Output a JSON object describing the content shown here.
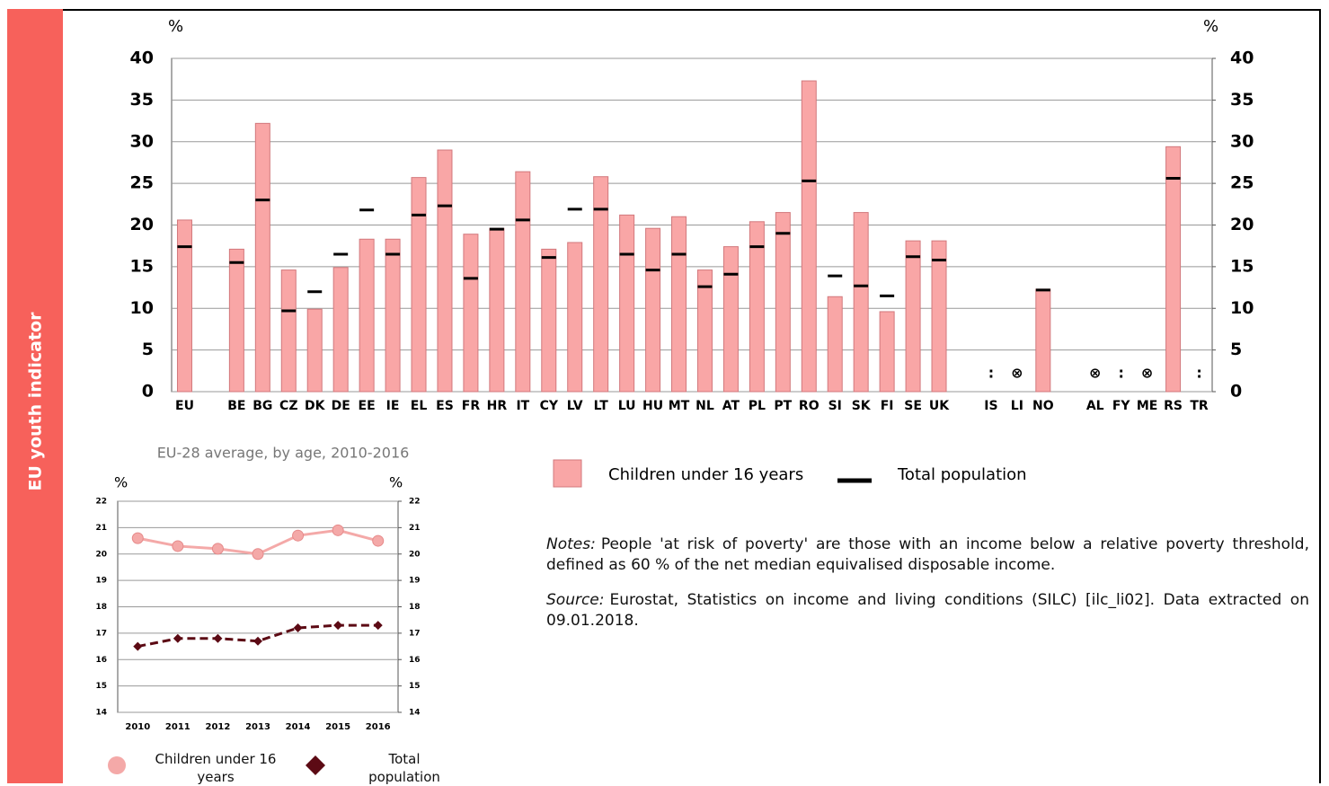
{
  "sidebar": "EU youth indicator",
  "chart_data": [
    {
      "type": "bar",
      "ylabel": "%",
      "y2label": "%",
      "categories": [
        "EU",
        null,
        "BE",
        "BG",
        "CZ",
        "DK",
        "DE",
        "EE",
        "IE",
        "EL",
        "ES",
        "FR",
        "HR",
        "IT",
        "CY",
        "LV",
        "LT",
        "LU",
        "HU",
        "MT",
        "NL",
        "AT",
        "PL",
        "PT",
        "RO",
        "SI",
        "SK",
        "FI",
        "SE",
        "UK",
        null,
        "IS",
        "LI",
        "NO",
        null,
        "AL",
        "FY",
        "ME",
        "RS",
        "TR"
      ],
      "series": [
        {
          "name": "Children under 16 years",
          "color": "#f9a6a6",
          "style": "bar",
          "values": [
            20.6,
            null,
            17.1,
            32.2,
            14.6,
            9.9,
            14.9,
            18.3,
            18.3,
            25.7,
            29.0,
            18.9,
            19.6,
            26.4,
            17.1,
            17.9,
            25.8,
            21.2,
            19.6,
            21.0,
            14.6,
            17.4,
            20.4,
            21.5,
            37.3,
            11.4,
            21.5,
            9.6,
            18.1,
            18.1,
            null,
            null,
            null,
            12.3,
            null,
            null,
            null,
            null,
            29.4,
            null
          ]
        },
        {
          "name": "Total population",
          "color": "#000000",
          "style": "dash",
          "values": [
            17.4,
            null,
            15.5,
            23.0,
            9.7,
            12.0,
            16.5,
            21.8,
            16.5,
            21.2,
            22.3,
            13.6,
            19.5,
            20.6,
            16.1,
            21.9,
            21.9,
            16.5,
            14.6,
            16.5,
            12.6,
            14.1,
            17.4,
            19.0,
            25.3,
            13.9,
            12.7,
            11.5,
            16.2,
            15.8,
            null,
            null,
            null,
            12.2,
            null,
            null,
            null,
            null,
            25.6,
            null
          ]
        }
      ],
      "missing_labels": [
        null,
        null,
        null,
        null,
        null,
        null,
        null,
        null,
        null,
        null,
        null,
        null,
        null,
        null,
        null,
        null,
        null,
        null,
        null,
        null,
        null,
        null,
        null,
        null,
        null,
        null,
        null,
        null,
        null,
        null,
        null,
        ":",
        "⊗",
        null,
        null,
        "⊗",
        ":",
        "⊗",
        null,
        ":"
      ],
      "ylim": [
        0,
        40
      ],
      "yticks": [
        0,
        5,
        10,
        15,
        20,
        25,
        30,
        35,
        40
      ],
      "y2lim": [
        0,
        40
      ],
      "y2ticks": [
        0,
        5,
        10,
        15,
        20,
        25,
        30,
        35,
        40
      ],
      "grid": true
    },
    {
      "type": "line",
      "title": "EU-28 average, by age, 2010-2016",
      "ylabel": "%",
      "y2label": "%",
      "categories": [
        "2010",
        "2011",
        "2012",
        "2013",
        "2014",
        "2015",
        "2016"
      ],
      "series": [
        {
          "name": "Children under 16 years",
          "color": "#f4a9a8",
          "marker": "circle",
          "dashed": false,
          "values": [
            20.6,
            20.3,
            20.2,
            20.0,
            20.7,
            20.9,
            20.5
          ]
        },
        {
          "name": "Total population",
          "color": "#5c0a14",
          "marker": "diamond",
          "dashed": true,
          "values": [
            16.5,
            16.8,
            16.8,
            16.7,
            17.2,
            17.3,
            17.3
          ]
        }
      ],
      "ylim": [
        14,
        22
      ],
      "yticks": [
        14,
        15,
        16,
        17,
        18,
        19,
        20,
        21,
        22
      ],
      "y2lim": [
        14,
        22
      ],
      "y2ticks": [
        14,
        15,
        16,
        17,
        18,
        19,
        20,
        21,
        22
      ],
      "grid": true
    }
  ],
  "notes": {
    "label": "Notes:",
    "text": "People 'at risk of poverty' are those with an income below a relative poverty threshold, defined as 60 % of the net median equivalised disposable income."
  },
  "source": {
    "label": "Source:",
    "text": "Eurostat, Statistics on income and living conditions (SILC) [ilc_li02]. Data extracted on 09.01.2018."
  }
}
